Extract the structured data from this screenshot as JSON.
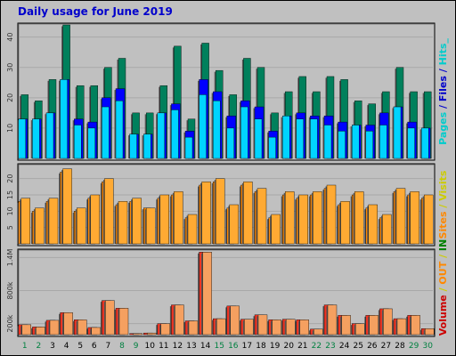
{
  "title": "Daily usage for June 2019",
  "colors": {
    "background": "#c0c0c0",
    "panel": "#c0c0c0",
    "grid": "#a8a8a8",
    "hits": "#00805c",
    "files": "#0000ff",
    "pages": "#00d4ff",
    "visits": "#ffaa33",
    "sites": "#ff8800",
    "kbin": "#ee3322",
    "kbout": "#f5a060",
    "weekday": "#008040",
    "workday": "#000000",
    "label_red": "#cc0000",
    "label_orange": "#ff8800",
    "label_yellow": "#cccc00",
    "label_blue": "#0000cc",
    "label_cyan": "#00cccc",
    "label_green": "#008000"
  },
  "chart_data": [
    {
      "type": "bar",
      "panel": "hits-files-pages",
      "categories": [
        "1",
        "2",
        "3",
        "4",
        "5",
        "6",
        "7",
        "8",
        "9",
        "10",
        "11",
        "12",
        "13",
        "14",
        "15",
        "16",
        "17",
        "18",
        "19",
        "20",
        "21",
        "22",
        "23",
        "24",
        "25",
        "26",
        "27",
        "28",
        "29",
        "30"
      ],
      "weekend_days": [
        "1",
        "2",
        "8",
        "9",
        "15",
        "16",
        "22",
        "23",
        "29",
        "30"
      ],
      "ylim": [
        0,
        44
      ],
      "yticks": [
        10,
        20,
        30,
        40
      ],
      "series": [
        {
          "name": "Hits",
          "values": [
            21,
            19,
            26,
            44,
            24,
            24,
            30,
            33,
            15,
            15,
            24,
            37,
            13,
            38,
            29,
            21,
            33,
            30,
            15,
            22,
            27,
            22,
            27,
            26,
            19,
            18,
            22,
            30,
            22,
            22
          ]
        },
        {
          "name": "Files",
          "values": [
            13,
            13,
            15,
            26,
            13,
            12,
            20,
            23,
            8,
            8,
            15,
            18,
            9,
            26,
            22,
            14,
            19,
            17,
            9,
            14,
            15,
            14,
            14,
            12,
            11,
            11,
            15,
            17,
            12,
            10
          ]
        },
        {
          "name": "Pages",
          "values": [
            13,
            13,
            15,
            26,
            11,
            10,
            17,
            19,
            8,
            8,
            15,
            16,
            7,
            21,
            19,
            10,
            17,
            13,
            7,
            14,
            13,
            13,
            11,
            9,
            11,
            9,
            11,
            17,
            10,
            10
          ]
        }
      ],
      "vertical_label": [
        "Pages",
        " / ",
        "Files",
        " / ",
        "Hits_"
      ]
    },
    {
      "type": "bar",
      "panel": "visits-sites",
      "categories": [
        "1",
        "2",
        "3",
        "4",
        "5",
        "6",
        "7",
        "8",
        "9",
        "10",
        "11",
        "12",
        "13",
        "14",
        "15",
        "16",
        "17",
        "18",
        "19",
        "20",
        "21",
        "22",
        "23",
        "24",
        "25",
        "26",
        "27",
        "28",
        "29",
        "30"
      ],
      "ylim": [
        0,
        24
      ],
      "yticks": [
        5,
        10,
        15,
        20
      ],
      "series": [
        {
          "name": "Visits",
          "values": [
            14,
            11,
            14,
            23,
            11,
            15,
            20,
            13,
            14,
            11,
            15,
            16,
            9,
            19,
            20,
            12,
            19,
            17,
            9,
            16,
            15,
            16,
            18,
            13,
            16,
            12,
            9,
            17,
            16,
            15
          ]
        },
        {
          "name": "Sites",
          "values": [
            13,
            10,
            13,
            22,
            10,
            14,
            19,
            12,
            13,
            11,
            14,
            15,
            8,
            18,
            19,
            11,
            18,
            16,
            8,
            15,
            14,
            15,
            17,
            12,
            15,
            11,
            8,
            16,
            15,
            14
          ]
        }
      ],
      "vertical_label": [
        "Sites",
        " / ",
        "Visits"
      ]
    },
    {
      "type": "bar",
      "panel": "volume",
      "categories": [
        "1",
        "2",
        "3",
        "4",
        "5",
        "6",
        "7",
        "8",
        "9",
        "10",
        "11",
        "12",
        "13",
        "14",
        "15",
        "16",
        "17",
        "18",
        "19",
        "20",
        "21",
        "22",
        "23",
        "24",
        "25",
        "26",
        "27",
        "28",
        "29",
        "30"
      ],
      "ylim": [
        0,
        1520000
      ],
      "yticks": [
        200000,
        800000,
        1400000
      ],
      "ytick_labels": [
        "200k",
        "800k",
        "1.4M"
      ],
      "series": [
        {
          "name": "Volume",
          "values": [
            180000,
            140000,
            260000,
            400000,
            270000,
            130000,
            620000,
            480000,
            20000,
            30000,
            200000,
            540000,
            250000,
            1500000,
            290000,
            520000,
            280000,
            360000,
            270000,
            280000,
            270000,
            100000,
            540000,
            350000,
            200000,
            350000,
            470000,
            290000,
            350000,
            110000
          ]
        },
        {
          "name": "OUT",
          "values": [
            180000,
            140000,
            260000,
            400000,
            270000,
            130000,
            620000,
            480000,
            20000,
            30000,
            200000,
            540000,
            250000,
            1500000,
            290000,
            520000,
            280000,
            360000,
            270000,
            280000,
            270000,
            100000,
            540000,
            350000,
            200000,
            350000,
            470000,
            290000,
            350000,
            110000
          ]
        }
      ],
      "vertical_label": [
        "Volume",
        " / ",
        "OUT",
        " / ",
        "IN"
      ]
    }
  ]
}
